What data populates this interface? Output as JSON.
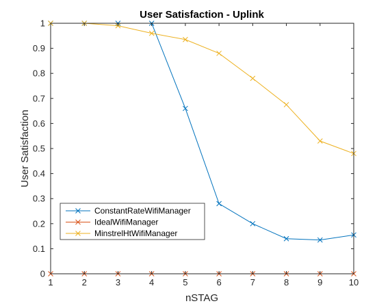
{
  "chart_data": {
    "type": "line",
    "title": "User Satisfaction - Uplink",
    "xlabel": "nSTAG",
    "ylabel": "User Satisfaction",
    "xlim": [
      1,
      10
    ],
    "ylim": [
      0,
      1
    ],
    "x_ticks": [
      "1",
      "2",
      "3",
      "4",
      "5",
      "6",
      "7",
      "8",
      "9",
      "10"
    ],
    "y_ticks": [
      "0",
      "0.1",
      "0.2",
      "0.3",
      "0.4",
      "0.5",
      "0.6",
      "0.7",
      "0.8",
      "0.9",
      "1"
    ],
    "x": [
      1,
      2,
      3,
      4,
      5,
      6,
      7,
      8,
      9,
      10
    ],
    "grid": false,
    "legend_position": "lower-left",
    "series": [
      {
        "name": "ConstantRateWifiManager",
        "color": "#0072BD",
        "marker": "x",
        "values": [
          1,
          1,
          1,
          1,
          0.66,
          0.28,
          0.2,
          0.14,
          0.135,
          0.155
        ]
      },
      {
        "name": "IdealWifiManager",
        "color": "#D95319",
        "marker": "x",
        "values": [
          0,
          0,
          0,
          0,
          0,
          0,
          0,
          0,
          0,
          0
        ]
      },
      {
        "name": "MinstrelHtWifiManager",
        "color": "#EDB120",
        "marker": "x",
        "values": [
          1,
          1,
          0.99,
          0.96,
          0.935,
          0.88,
          0.78,
          0.675,
          0.53,
          0.48
        ]
      }
    ]
  }
}
